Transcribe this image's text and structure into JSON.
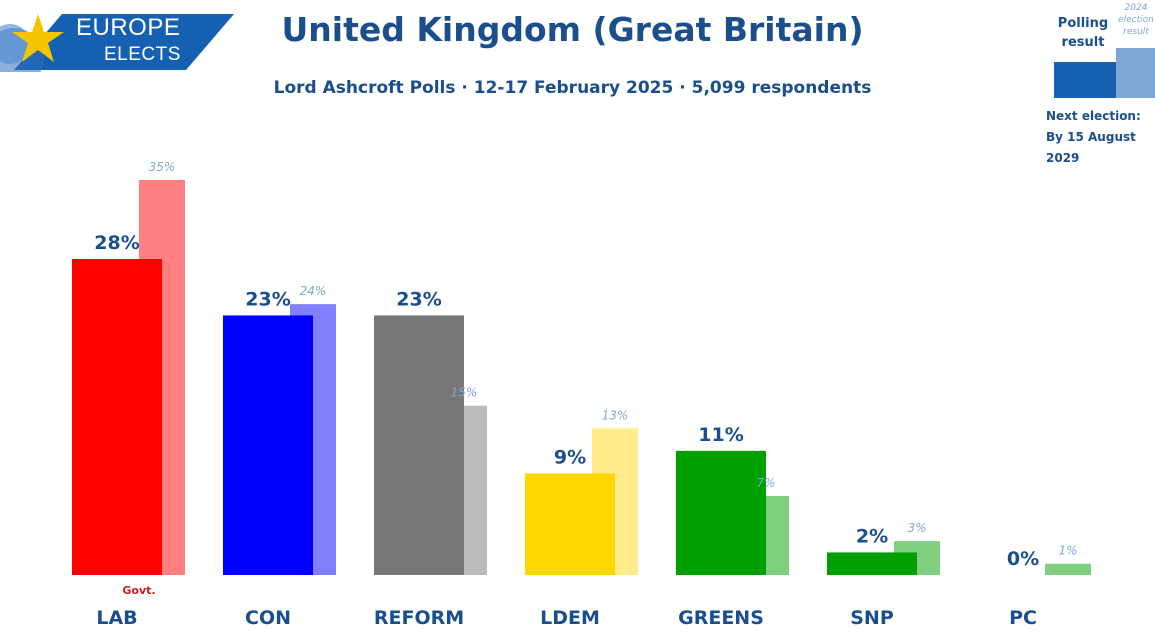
{
  "logo": {
    "line1": "EUROPE",
    "line2": "ELECTS"
  },
  "header": {
    "title": "United Kingdom (Great Britain)",
    "subtitle": "Lord Ashcroft Polls · 12-17 February 2025 · 5,099 respondents"
  },
  "legend": {
    "polling_line1": "Polling",
    "polling_line2": "result",
    "prev_line1": "2024",
    "prev_line2": "election",
    "prev_line3": "result",
    "next_label": "Next election:",
    "next_date": "By 15 August 2029"
  },
  "chart_data": {
    "type": "bar",
    "categories": [
      "LAB",
      "CON",
      "REFORM",
      "LDEM",
      "GREENS",
      "SNP",
      "PC"
    ],
    "series": [
      {
        "name": "Polling result",
        "values": [
          28,
          23,
          23,
          9,
          11,
          2,
          0
        ],
        "labels": [
          "28%",
          "23%",
          "23%",
          "9%",
          "11%",
          "2%",
          "0%"
        ]
      },
      {
        "name": "2024 election result",
        "values": [
          35,
          24,
          15,
          13,
          7,
          3,
          1
        ],
        "labels": [
          "35%",
          "24%",
          "15%",
          "13%",
          "7%",
          "3%",
          "1%"
        ]
      }
    ],
    "colors": {
      "poll": [
        "#ff0000",
        "#0000ff",
        "#777777",
        "#ffd700",
        "#00a000",
        "#00a000",
        "#00a000"
      ],
      "prev": [
        "#ff8080",
        "#8080ff",
        "#bbbbbb",
        "#ffec8b",
        "#80cf80",
        "#80cf80",
        "#80cf80"
      ]
    },
    "annotations": [
      {
        "category": "LAB",
        "text": "Govt."
      }
    ],
    "ylim": [
      0,
      35
    ]
  }
}
